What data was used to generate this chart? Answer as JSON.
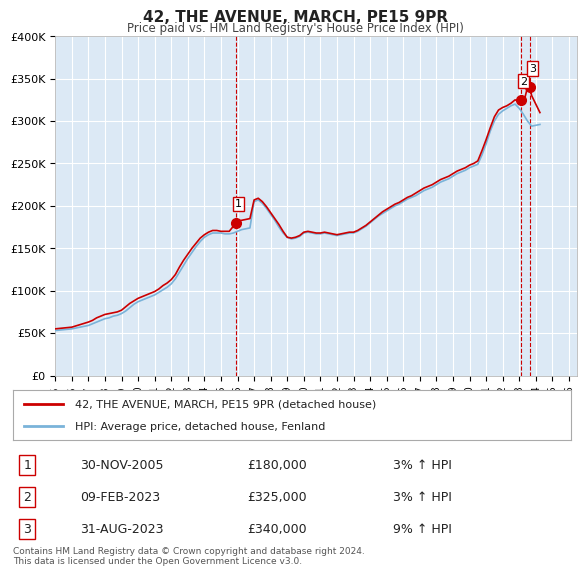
{
  "title": "42, THE AVENUE, MARCH, PE15 9PR",
  "subtitle": "Price paid vs. HM Land Registry's House Price Index (HPI)",
  "xlabel": "",
  "ylabel": "",
  "bg_color": "#dce9f5",
  "plot_bg_color": "#dce9f5",
  "fig_bg_color": "#ffffff",
  "red_line_color": "#cc0000",
  "blue_line_color": "#7ab3d9",
  "ylim": [
    0,
    400000
  ],
  "yticks": [
    0,
    50000,
    100000,
    150000,
    200000,
    250000,
    300000,
    350000,
    400000
  ],
  "ytick_labels": [
    "£0",
    "£50K",
    "£100K",
    "£150K",
    "£200K",
    "£250K",
    "£300K",
    "£350K",
    "£400K"
  ],
  "xlim_start": 1995.0,
  "xlim_end": 2026.5,
  "xticks": [
    1995,
    1996,
    1997,
    1998,
    1999,
    2000,
    2001,
    2002,
    2003,
    2004,
    2005,
    2006,
    2007,
    2008,
    2009,
    2010,
    2011,
    2012,
    2013,
    2014,
    2015,
    2016,
    2017,
    2018,
    2019,
    2020,
    2021,
    2022,
    2023,
    2024,
    2025,
    2026
  ],
  "transaction1_x": 2005.917,
  "transaction1_y": 180000,
  "transaction1_label": "1",
  "transaction2_x": 2023.117,
  "transaction2_y": 325000,
  "transaction2_label": "2",
  "transaction3_x": 2023.667,
  "transaction3_y": 340000,
  "transaction3_label": "3",
  "legend_line1": "42, THE AVENUE, MARCH, PE15 9PR (detached house)",
  "legend_line2": "HPI: Average price, detached house, Fenland",
  "table_rows": [
    {
      "num": "1",
      "date": "30-NOV-2005",
      "price": "£180,000",
      "hpi": "3% ↑ HPI"
    },
    {
      "num": "2",
      "date": "09-FEB-2023",
      "price": "£325,000",
      "hpi": "3% ↑ HPI"
    },
    {
      "num": "3",
      "date": "31-AUG-2023",
      "price": "£340,000",
      "hpi": "9% ↑ HPI"
    }
  ],
  "footnote": "Contains HM Land Registry data © Crown copyright and database right 2024.\nThis data is licensed under the Open Government Licence v3.0.",
  "hpi_data": {
    "years": [
      1995.0,
      1995.25,
      1995.5,
      1995.75,
      1996.0,
      1996.25,
      1996.5,
      1996.75,
      1997.0,
      1997.25,
      1997.5,
      1997.75,
      1998.0,
      1998.25,
      1998.5,
      1998.75,
      1999.0,
      1999.25,
      1999.5,
      1999.75,
      2000.0,
      2000.25,
      2000.5,
      2000.75,
      2001.0,
      2001.25,
      2001.5,
      2001.75,
      2002.0,
      2002.25,
      2002.5,
      2002.75,
      2003.0,
      2003.25,
      2003.5,
      2003.75,
      2004.0,
      2004.25,
      2004.5,
      2004.75,
      2005.0,
      2005.25,
      2005.5,
      2005.75,
      2006.0,
      2006.25,
      2006.5,
      2006.75,
      2007.0,
      2007.25,
      2007.5,
      2007.75,
      2008.0,
      2008.25,
      2008.5,
      2008.75,
      2009.0,
      2009.25,
      2009.5,
      2009.75,
      2010.0,
      2010.25,
      2010.5,
      2010.75,
      2011.0,
      2011.25,
      2011.5,
      2011.75,
      2012.0,
      2012.25,
      2012.5,
      2012.75,
      2013.0,
      2013.25,
      2013.5,
      2013.75,
      2014.0,
      2014.25,
      2014.5,
      2014.75,
      2015.0,
      2015.25,
      2015.5,
      2015.75,
      2016.0,
      2016.25,
      2016.5,
      2016.75,
      2017.0,
      2017.25,
      2017.5,
      2017.75,
      2018.0,
      2018.25,
      2018.5,
      2018.75,
      2019.0,
      2019.25,
      2019.5,
      2019.75,
      2020.0,
      2020.25,
      2020.5,
      2020.75,
      2021.0,
      2021.25,
      2021.5,
      2021.75,
      2022.0,
      2022.25,
      2022.5,
      2022.75,
      2023.0,
      2023.25,
      2023.5,
      2023.75,
      2024.0,
      2024.25
    ],
    "values": [
      53000,
      53500,
      54000,
      54500,
      55000,
      56000,
      57000,
      58000,
      59000,
      61000,
      63000,
      65000,
      67000,
      68000,
      70000,
      71000,
      73000,
      76000,
      80000,
      84000,
      87000,
      89000,
      91000,
      93000,
      95000,
      98000,
      101000,
      104000,
      108000,
      114000,
      122000,
      130000,
      138000,
      145000,
      152000,
      158000,
      163000,
      166000,
      168000,
      168000,
      168000,
      167000,
      167000,
      168000,
      170000,
      172000,
      173000,
      174000,
      205000,
      207000,
      203000,
      197000,
      190000,
      183000,
      175000,
      168000,
      163000,
      161000,
      162000,
      164000,
      168000,
      169000,
      168000,
      167000,
      167000,
      168000,
      167000,
      166000,
      165000,
      166000,
      167000,
      168000,
      168000,
      170000,
      173000,
      176000,
      180000,
      184000,
      188000,
      191000,
      194000,
      197000,
      200000,
      202000,
      205000,
      208000,
      210000,
      212000,
      215000,
      218000,
      220000,
      222000,
      225000,
      228000,
      230000,
      232000,
      235000,
      238000,
      240000,
      242000,
      245000,
      247000,
      249000,
      260000,
      273000,
      288000,
      300000,
      308000,
      312000,
      315000,
      318000,
      320000,
      315000,
      308000,
      300000,
      294000,
      295000,
      296000
    ]
  },
  "price_data": {
    "years": [
      1995.0,
      1995.25,
      1995.5,
      1995.75,
      1996.0,
      1996.25,
      1996.5,
      1996.75,
      1997.0,
      1997.25,
      1997.5,
      1997.75,
      1998.0,
      1998.25,
      1998.5,
      1998.75,
      1999.0,
      1999.25,
      1999.5,
      1999.75,
      2000.0,
      2000.25,
      2000.5,
      2000.75,
      2001.0,
      2001.25,
      2001.5,
      2001.75,
      2002.0,
      2002.25,
      2002.5,
      2002.75,
      2003.0,
      2003.25,
      2003.5,
      2003.75,
      2004.0,
      2004.25,
      2004.5,
      2004.75,
      2005.0,
      2005.25,
      2005.5,
      2005.917,
      2006.0,
      2006.25,
      2006.5,
      2006.75,
      2007.0,
      2007.25,
      2007.5,
      2007.75,
      2008.0,
      2008.25,
      2008.5,
      2008.75,
      2009.0,
      2009.25,
      2009.5,
      2009.75,
      2010.0,
      2010.25,
      2010.5,
      2010.75,
      2011.0,
      2011.25,
      2011.5,
      2011.75,
      2012.0,
      2012.25,
      2012.5,
      2012.75,
      2013.0,
      2013.25,
      2013.5,
      2013.75,
      2014.0,
      2014.25,
      2014.5,
      2014.75,
      2015.0,
      2015.25,
      2015.5,
      2015.75,
      2016.0,
      2016.25,
      2016.5,
      2016.75,
      2017.0,
      2017.25,
      2017.5,
      2017.75,
      2018.0,
      2018.25,
      2018.5,
      2018.75,
      2019.0,
      2019.25,
      2019.5,
      2019.75,
      2020.0,
      2020.25,
      2020.5,
      2020.75,
      2021.0,
      2021.25,
      2021.5,
      2021.75,
      2022.0,
      2022.25,
      2022.5,
      2022.75,
      2023.0,
      2023.117,
      2023.25,
      2023.5,
      2023.667,
      2023.75,
      2024.0,
      2024.25
    ],
    "values": [
      55000,
      55500,
      56000,
      56500,
      57000,
      58500,
      60000,
      61500,
      63000,
      65000,
      68000,
      70000,
      72000,
      73000,
      74000,
      75000,
      77000,
      81000,
      85000,
      88000,
      91000,
      93000,
      95000,
      97000,
      99000,
      102000,
      106000,
      109000,
      113000,
      119000,
      128000,
      136000,
      143000,
      150000,
      156000,
      162000,
      166000,
      169000,
      171000,
      171000,
      170000,
      170000,
      170000,
      180000,
      182000,
      183000,
      184000,
      185000,
      207000,
      209000,
      205000,
      199000,
      192000,
      185000,
      178000,
      170000,
      163000,
      162000,
      163000,
      165000,
      169000,
      170000,
      169000,
      168000,
      168000,
      169000,
      168000,
      167000,
      166000,
      167000,
      168000,
      169000,
      169000,
      171000,
      174000,
      177000,
      181000,
      185000,
      189000,
      193000,
      196000,
      199000,
      202000,
      204000,
      207000,
      210000,
      212000,
      215000,
      218000,
      221000,
      223000,
      225000,
      228000,
      231000,
      233000,
      235000,
      238000,
      241000,
      243000,
      245000,
      248000,
      250000,
      253000,
      265000,
      278000,
      292000,
      305000,
      313000,
      316000,
      318000,
      321000,
      325000,
      323000,
      325000,
      320000,
      340000,
      337000,
      330000,
      320000,
      310000
    ]
  }
}
